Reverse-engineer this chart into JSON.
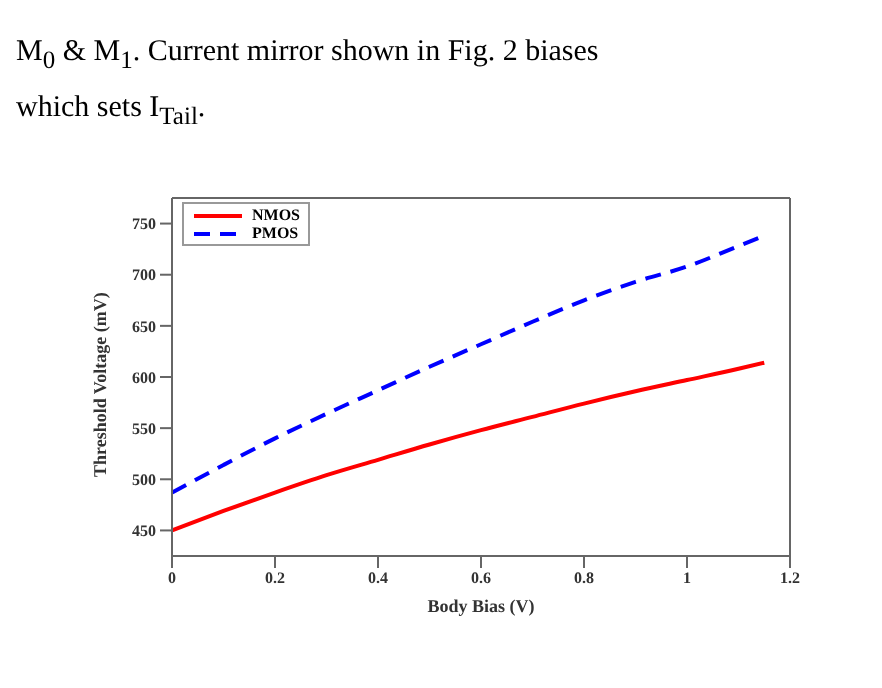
{
  "chart_data": {
    "type": "line",
    "xlabel": "Body Bias (V)",
    "ylabel": "Threshold Voltage (mV)",
    "annotations": [
      "M$_{0}$ & M$_{1}$. Current mirror shown in Fig. 2 biases",
      "which sets I$_{Tail}$."
    ],
    "x": [
      0,
      0.1,
      0.2,
      0.3,
      0.4,
      0.5,
      0.6,
      0.7,
      0.8,
      0.9,
      1.0,
      1.1,
      1.15
    ],
    "series": [
      {
        "name": "NMOS",
        "color": "#ff0000",
        "line_style": "solid",
        "values": [
          450,
          469,
          487,
          504,
          519,
          534,
          548,
          561,
          574,
          586,
          597,
          608,
          614
        ]
      },
      {
        "name": "PMOS",
        "color": "#0000ff",
        "line_style": "dashed",
        "values": [
          487,
          514,
          540,
          564,
          587,
          610,
          632,
          654,
          675,
          693,
          708,
          728,
          738
        ]
      }
    ],
    "xlim": [
      0,
      1.2
    ],
    "xticks": [
      0,
      0.2,
      0.4,
      0.6,
      0.8,
      1,
      1.2
    ],
    "ylim": [
      425,
      775
    ],
    "yticks": [
      450,
      500,
      550,
      600,
      650,
      700,
      750
    ],
    "grid": false,
    "legend": "top left",
    "marker": "none"
  }
}
